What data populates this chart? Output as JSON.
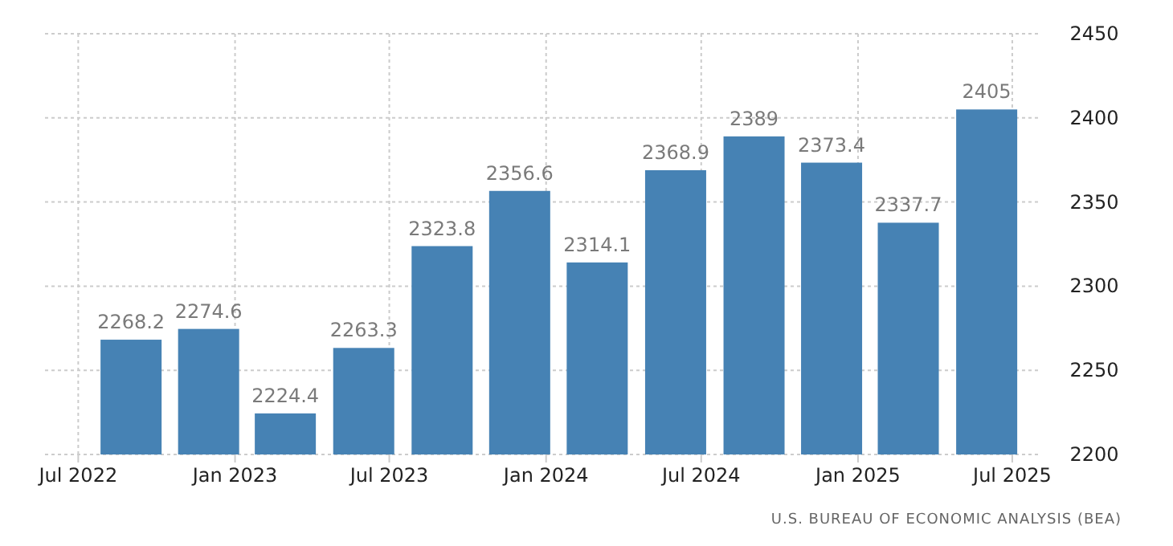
{
  "chart_data": {
    "type": "bar",
    "x": [
      "2022-09-01",
      "2022-12-01",
      "2023-03-01",
      "2023-06-01",
      "2023-09-01",
      "2023-12-01",
      "2024-03-01",
      "2024-06-01",
      "2024-09-01",
      "2024-12-01",
      "2025-03-01",
      "2025-06-01"
    ],
    "values": [
      2268.2,
      2274.6,
      2224.4,
      2263.3,
      2323.8,
      2356.6,
      2314.1,
      2368.9,
      2389,
      2373.4,
      2337.7,
      2405
    ],
    "color": "#4682b4",
    "data_labels": true,
    "xlim": [
      "2022-05-23",
      "2025-08-04"
    ],
    "xticks": [
      {
        "value": "2022-07-01",
        "label": "Jul 2022"
      },
      {
        "value": "2023-01-01",
        "label": "Jan 2023"
      },
      {
        "value": "2023-07-01",
        "label": "Jul 2023"
      },
      {
        "value": "2024-01-01",
        "label": "Jan 2024"
      },
      {
        "value": "2024-07-01",
        "label": "Jul 2024"
      },
      {
        "value": "2025-01-01",
        "label": "Jan 2025"
      },
      {
        "value": "2025-07-01",
        "label": "Jul 2025"
      }
    ],
    "ylim": [
      2200,
      2450
    ],
    "yticks": [
      2200,
      2250,
      2300,
      2350,
      2400,
      2450
    ],
    "grid": true,
    "annotations": [
      "U.S. BUREAU OF ECONOMIC ANALYSIS (BEA)"
    ]
  }
}
